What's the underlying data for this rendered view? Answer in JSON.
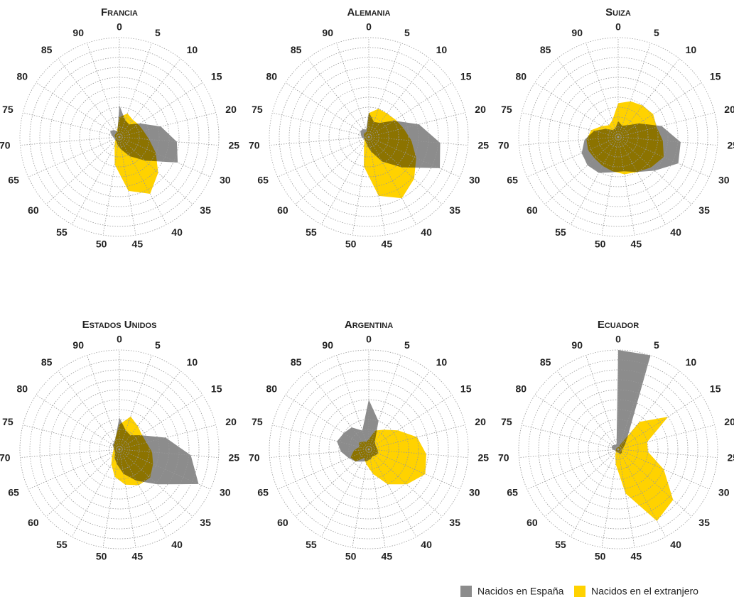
{
  "chart_data": [
    {
      "type": "radar",
      "title": "Francia",
      "categories": [
        "0",
        "5",
        "10",
        "15",
        "20",
        "25",
        "30",
        "35",
        "40",
        "45",
        "50",
        "55",
        "60",
        "65",
        "70",
        "75",
        "80",
        "85",
        "90"
      ],
      "rlim": [
        0,
        10
      ],
      "rticks": [
        1,
        2,
        3,
        4,
        5,
        6,
        7,
        8,
        9,
        10
      ],
      "series": [
        {
          "name": "Nacidos en España",
          "color": "#8c8c8c",
          "values": [
            3.2,
            1.8,
            1.6,
            2.5,
            4.3,
            5.8,
            6.4,
            3.5,
            2.2,
            1.3,
            0.9,
            0.6,
            0.5,
            0.5,
            0.6,
            0.8,
            1.1,
            0.9,
            0.6
          ]
        },
        {
          "name": "Nacidos en el extranjero",
          "color": "#ffd200",
          "values": [
            2.0,
            2.5,
            2.2,
            2.3,
            2.5,
            3.0,
            4.0,
            5.3,
            6.5,
            5.5,
            2.8,
            1.0,
            0.6,
            0.4,
            0.4,
            0.5,
            0.5,
            0.5,
            0.7
          ]
        }
      ]
    },
    {
      "type": "radar",
      "title": "Alemania",
      "categories": [
        "0",
        "5",
        "10",
        "15",
        "20",
        "25",
        "30",
        "35",
        "40",
        "45",
        "50",
        "55",
        "60",
        "65",
        "70",
        "75",
        "80",
        "85",
        "90"
      ],
      "rlim": [
        0,
        10
      ],
      "rticks": [
        1,
        2,
        3,
        4,
        5,
        6,
        7,
        8,
        9,
        10
      ],
      "series": [
        {
          "color": "#8c8c8c",
          "values": [
            2.5,
            1.6,
            1.8,
            3.0,
            5.2,
            7.2,
            7.8,
            4.5,
            2.8,
            1.5,
            0.9,
            0.6,
            0.5,
            0.5,
            0.7,
            0.8,
            1.0,
            1.0,
            0.8
          ]
        },
        {
          "color": "#ffd200",
          "values": [
            2.4,
            3.0,
            3.0,
            3.2,
            3.6,
            4.3,
            5.2,
            6.2,
            7.0,
            6.0,
            3.0,
            1.0,
            0.6,
            0.5,
            0.4,
            0.5,
            0.6,
            0.6,
            0.6
          ]
        }
      ]
    },
    {
      "type": "radar",
      "title": "Suiza",
      "categories": [
        "0",
        "5",
        "10",
        "15",
        "20",
        "25",
        "30",
        "35",
        "40",
        "45",
        "50",
        "55",
        "60",
        "65",
        "70",
        "75",
        "80",
        "85",
        "90"
      ],
      "rlim": [
        0,
        10
      ],
      "rticks": [
        1,
        2,
        3,
        4,
        5,
        6,
        7,
        8,
        9,
        10
      ],
      "series": [
        {
          "color": "#8c8c8c",
          "values": [
            1.6,
            1.2,
            1.5,
            2.5,
            4.5,
            6.3,
            6.6,
            5.0,
            4.0,
            3.5,
            3.6,
            4.1,
            4.2,
            4.0,
            3.4,
            2.5,
            1.5,
            0.9,
            0.9
          ]
        },
        {
          "color": "#ffd200",
          "values": [
            3.4,
            3.8,
            4.0,
            4.2,
            4.0,
            4.5,
            5.0,
            4.5,
            4.0,
            3.8,
            3.5,
            3.3,
            3.2,
            3.3,
            3.2,
            2.8,
            2.0,
            1.5,
            1.8
          ]
        }
      ]
    },
    {
      "type": "radar",
      "title": "Estados Unidos",
      "categories": [
        "0",
        "5",
        "10",
        "15",
        "20",
        "25",
        "30",
        "35",
        "40",
        "45",
        "50",
        "55",
        "60",
        "65",
        "70",
        "75",
        "80",
        "85",
        "90"
      ],
      "rlim": [
        0,
        10
      ],
      "rticks": [
        1,
        2,
        3,
        4,
        5,
        6,
        7,
        8,
        9,
        10
      ],
      "series": [
        {
          "color": "#8c8c8c",
          "values": [
            3.2,
            2.0,
            1.8,
            2.6,
            4.8,
            7.2,
            8.7,
            5.2,
            3.6,
            2.5,
            1.5,
            1.0,
            0.6,
            0.5,
            0.5,
            0.6,
            0.8,
            0.9,
            1.2
          ]
        },
        {
          "color": "#ffd200",
          "values": [
            2.5,
            3.5,
            3.0,
            2.7,
            2.8,
            3.3,
            3.7,
            4.2,
            4.1,
            3.6,
            2.8,
            1.7,
            1.0,
            0.7,
            0.6,
            0.6,
            0.7,
            0.8,
            1.2
          ]
        }
      ]
    },
    {
      "type": "radar",
      "title": "Argentina",
      "categories": [
        "0",
        "5",
        "10",
        "15",
        "20",
        "25",
        "30",
        "35",
        "40",
        "45",
        "50",
        "55",
        "60",
        "65",
        "70",
        "75",
        "80",
        "85",
        "90"
      ],
      "rlim": [
        0,
        10
      ],
      "rticks": [
        1,
        2,
        3,
        4,
        5,
        6,
        7,
        8,
        9,
        10
      ],
      "series": [
        {
          "color": "#8c8c8c",
          "values": [
            5.0,
            3.0,
            1.0,
            0.8,
            0.8,
            0.9,
            1.0,
            0.9,
            0.8,
            1.0,
            1.2,
            1.4,
            1.8,
            2.2,
            2.8,
            3.3,
            3.0,
            2.8,
            2.0
          ]
        },
        {
          "color": "#ffd200",
          "values": [
            1.0,
            2.0,
            2.5,
            3.5,
            5.0,
            5.8,
            6.2,
            5.2,
            4.0,
            2.5,
            1.5,
            1.0,
            1.8,
            2.0,
            1.5,
            1.0,
            1.2,
            1.0,
            0.8
          ]
        }
      ]
    },
    {
      "type": "radar",
      "title": "Ecuador",
      "categories": [
        "0",
        "5",
        "10",
        "15",
        "20",
        "25",
        "30",
        "35",
        "40",
        "45",
        "50",
        "55",
        "60",
        "65",
        "70",
        "75",
        "80",
        "85",
        "90"
      ],
      "rlim": [
        0,
        10
      ],
      "rticks": [
        1,
        2,
        3,
        4,
        5,
        6,
        7,
        8,
        9,
        10
      ],
      "series": [
        {
          "color": "#8c8c8c",
          "values": [
            10.0,
            10.0,
            1.5,
            0.8,
            0.5,
            0.4,
            0.4,
            0.5,
            0.5,
            0.4,
            0.3,
            0.3,
            0.3,
            0.3,
            0.5,
            0.7,
            0.7,
            0.6,
            0.5
          ]
        },
        {
          "color": "#ffd200",
          "values": [
            0.2,
            0.4,
            3.5,
            6.0,
            3.0,
            3.0,
            5.0,
            7.5,
            8.2,
            4.5,
            1.5,
            0.6,
            0.3,
            0.3,
            0.2,
            0.2,
            0.2,
            0.2,
            0.2
          ]
        }
      ]
    }
  ]
}
